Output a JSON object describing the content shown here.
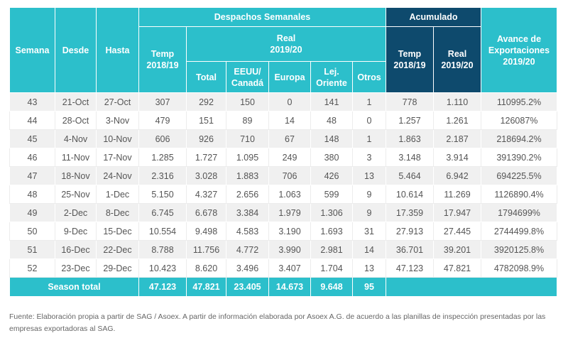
{
  "header": {
    "semana": "Semana",
    "desde": "Desde",
    "hasta": "Hasta",
    "despachos": "Despachos Semanales",
    "temp": "Temp\n2018/19",
    "real": "Real\n2019/20",
    "total": "Total",
    "eeuu": "EEUU/\nCanadá",
    "europa": "Europa",
    "lej": "Lej.\nOriente",
    "otros": "Otros",
    "acumulado": "Acumulado",
    "acum_temp": "Temp\n2018/19",
    "acum_real": "Real\n2019/20",
    "avance": "Avance de\nExportaciones\n2019/20"
  },
  "table": {
    "rows": [
      [
        "43",
        "21-Oct",
        "27-Oct",
        "307",
        "292",
        "150",
        "0",
        "141",
        "1",
        "778",
        "1.110",
        "110995.2%"
      ],
      [
        "44",
        "28-Oct",
        "3-Nov",
        "479",
        "151",
        "89",
        "14",
        "48",
        "0",
        "1.257",
        "1.261",
        "126087%"
      ],
      [
        "45",
        "4-Nov",
        "10-Nov",
        "606",
        "926",
        "710",
        "67",
        "148",
        "1",
        "1.863",
        "2.187",
        "218694.2%"
      ],
      [
        "46",
        "11-Nov",
        "17-Nov",
        "1.285",
        "1.727",
        "1.095",
        "249",
        "380",
        "3",
        "3.148",
        "3.914",
        "391390.2%"
      ],
      [
        "47",
        "18-Nov",
        "24-Nov",
        "2.316",
        "3.028",
        "1.883",
        "706",
        "426",
        "13",
        "5.464",
        "6.942",
        "694225.5%"
      ],
      [
        "48",
        "25-Nov",
        "1-Dec",
        "5.150",
        "4.327",
        "2.656",
        "1.063",
        "599",
        "9",
        "10.614",
        "11.269",
        "1126890.4%"
      ],
      [
        "49",
        "2-Dec",
        "8-Dec",
        "6.745",
        "6.678",
        "3.384",
        "1.979",
        "1.306",
        "9",
        "17.359",
        "17.947",
        "1794699%"
      ],
      [
        "50",
        "9-Dec",
        "15-Dec",
        "10.554",
        "9.498",
        "4.583",
        "3.190",
        "1.693",
        "31",
        "27.913",
        "27.445",
        "2744499.8%"
      ],
      [
        "51",
        "16-Dec",
        "22-Dec",
        "8.788",
        "11.756",
        "4.772",
        "3.990",
        "2.981",
        "14",
        "36.701",
        "39.201",
        "3920125.8%"
      ],
      [
        "52",
        "23-Dec",
        "29-Dec",
        "10.423",
        "8.620",
        "3.496",
        "3.407",
        "1.704",
        "13",
        "47.123",
        "47.821",
        "4782098.9%"
      ]
    ],
    "total": {
      "label": "Season total",
      "values": [
        "47.123",
        "47.821",
        "23.405",
        "14.673",
        "9.648",
        "95"
      ]
    }
  },
  "footer": "Fuente: Elaboración propia a partir de SAG / Asoex. A partir de información elaborada por Asoex A.G. de acuerdo a las planillas de inspección presentadas por las empresas exportadoras al SAG."
}
